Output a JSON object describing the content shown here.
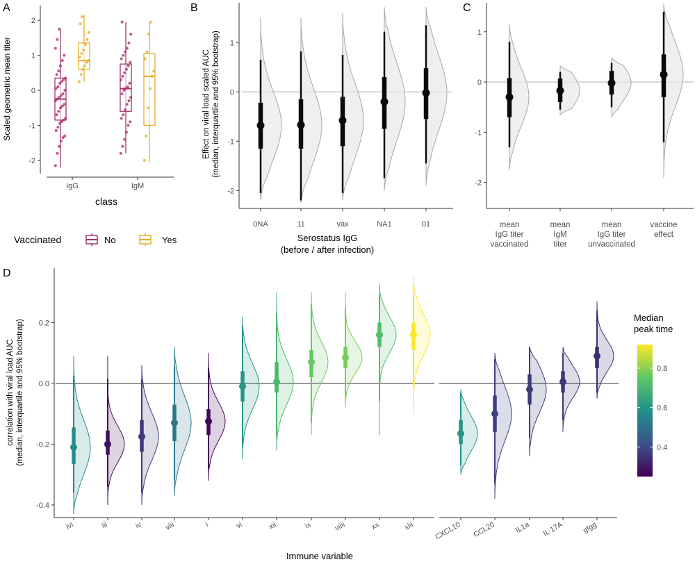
{
  "panel_letters": [
    "A",
    "B",
    "C",
    "D"
  ],
  "colors": {
    "no": "#a8326e",
    "yes": "#e7ae2a",
    "median_line": "#0a0a0a",
    "zero_line": "#b9b9b9",
    "zero_line_d": "#595959",
    "density_fill": "#e8e8e8",
    "density_stroke": "#a8a8a8",
    "axis_text": "#4d4d4d",
    "viridis": [
      "#440154",
      "#3b528b",
      "#21908c",
      "#5dc863",
      "#fde725"
    ]
  },
  "chart_data": [
    {
      "id": "A",
      "type": "box",
      "xlabel": "class",
      "ylabel": "Scaled geometric mean titer",
      "ylim": [
        -2.3,
        2.3
      ],
      "yticks": [
        -2,
        -1,
        0,
        1,
        2
      ],
      "categories": [
        "IgG",
        "IgM"
      ],
      "legend": {
        "title": "Vaccinated",
        "entries": [
          "No",
          "Yes"
        ]
      },
      "boxes": [
        {
          "category": "IgG",
          "group": "No",
          "min": -2.2,
          "q1": -0.85,
          "median": -0.25,
          "q3": 0.35,
          "max": 1.75
        },
        {
          "category": "IgG",
          "group": "Yes",
          "min": 0.25,
          "q1": 0.6,
          "median": 0.85,
          "q3": 1.35,
          "max": 2.15
        },
        {
          "category": "IgM",
          "group": "No",
          "min": -1.8,
          "q1": -0.6,
          "median": 0.05,
          "q3": 0.75,
          "max": 1.95
        },
        {
          "category": "IgM",
          "group": "Yes",
          "min": -2.05,
          "q1": -1.0,
          "median": 0.4,
          "q3": 1.05,
          "max": 1.95
        }
      ],
      "points": {
        "IgG_No": [
          -2.15,
          -1.8,
          -1.6,
          -1.45,
          -1.35,
          -1.3,
          -1.15,
          -1.05,
          -0.95,
          -0.9,
          -0.85,
          -0.8,
          -0.7,
          -0.6,
          -0.5,
          -0.45,
          -0.4,
          -0.3,
          -0.25,
          -0.2,
          -0.15,
          -0.1,
          0.0,
          0.05,
          0.1,
          0.2,
          0.25,
          0.3,
          0.35,
          0.45,
          0.55,
          0.7,
          0.85,
          1.0,
          1.2,
          1.45,
          1.75
        ],
        "IgG_Yes": [
          0.25,
          0.45,
          0.6,
          0.7,
          0.8,
          0.85,
          0.95,
          1.05,
          1.15,
          1.3,
          1.45,
          1.65,
          1.9,
          2.1
        ],
        "IgM_No": [
          -1.8,
          -1.6,
          -1.4,
          -1.2,
          -1.0,
          -0.9,
          -0.8,
          -0.7,
          -0.55,
          -0.4,
          -0.3,
          -0.2,
          -0.1,
          0.0,
          0.05,
          0.1,
          0.2,
          0.3,
          0.4,
          0.5,
          0.6,
          0.7,
          0.8,
          0.9,
          1.0,
          1.1,
          1.2,
          1.35,
          1.6,
          1.95
        ],
        "IgM_Yes": [
          -2.0,
          -1.3,
          -0.5,
          0.05,
          0.4,
          0.55,
          0.9,
          1.1,
          1.6,
          1.95
        ]
      }
    },
    {
      "id": "B",
      "type": "interval",
      "xlabel": "Serostatus IgG\n(before / after infection)",
      "ylabel": "Effect on viral load scaled AUC\n(median, interquartile and 95% bootstrap)",
      "ylim": [
        -2.25,
        1.75
      ],
      "yticks": [
        -2,
        -1,
        0,
        1
      ],
      "categories": [
        "0NA",
        "11",
        "vax",
        "NA1",
        "01"
      ],
      "series": [
        {
          "category": "0NA",
          "median": -0.68,
          "q1": -1.15,
          "q3": -0.22,
          "lo": -2.05,
          "hi": 0.65,
          "density_lo": -2.2,
          "density_hi": 1.5
        },
        {
          "category": "11",
          "median": -0.67,
          "q1": -1.15,
          "q3": -0.15,
          "lo": -2.2,
          "hi": 0.82,
          "density_lo": -2.25,
          "density_hi": 1.5
        },
        {
          "category": "vax",
          "median": -0.58,
          "q1": -1.1,
          "q3": -0.1,
          "lo": -2.05,
          "hi": 0.75,
          "density_lo": -2.2,
          "density_hi": 1.6
        },
        {
          "category": "NA1",
          "median": -0.2,
          "q1": -0.75,
          "q3": 0.3,
          "lo": -1.75,
          "hi": 1.22,
          "density_lo": -2.0,
          "density_hi": 1.72
        },
        {
          "category": "01",
          "median": -0.02,
          "q1": -0.55,
          "q3": 0.48,
          "lo": -1.45,
          "hi": 1.35,
          "density_lo": -1.9,
          "density_hi": 1.72
        }
      ]
    },
    {
      "id": "C",
      "type": "interval",
      "xlabel": "",
      "ylabel": "",
      "ylim": [
        -2.35,
        1.55
      ],
      "yticks": [
        -2,
        -1,
        0,
        1
      ],
      "categories": [
        "mean\nIgG titer\nvaccinated",
        "mean\nIgM\ntiter",
        "mean\nIgG titer\nunvaccinated",
        "vaccine\neffect"
      ],
      "series": [
        {
          "category": "mean IgG titer vaccinated",
          "median": -0.3,
          "q1": -0.7,
          "q3": 0.08,
          "lo": -1.3,
          "hi": 0.8,
          "density_lo": -1.75,
          "density_hi": 1.15
        },
        {
          "category": "mean IgM titer",
          "median": -0.17,
          "q1": -0.4,
          "q3": 0.07,
          "lo": -0.55,
          "hi": 0.2,
          "density_lo": -0.65,
          "density_hi": 0.32
        },
        {
          "category": "mean IgG titer unvaccinated",
          "median": -0.02,
          "q1": -0.25,
          "q3": 0.22,
          "lo": -0.5,
          "hi": 0.38,
          "density_lo": -0.7,
          "density_hi": 0.48
        },
        {
          "category": "vaccine effect",
          "median": 0.15,
          "q1": -0.3,
          "q3": 0.55,
          "lo": -1.2,
          "hi": 1.4,
          "density_lo": -1.9,
          "density_hi": 1.55
        }
      ]
    },
    {
      "id": "D",
      "type": "interval",
      "xlabel": "Immune variable",
      "ylabel": "correlation with viral load AUC\n(median, interquartile and 95% bootstrap)",
      "ylim": [
        -0.43,
        0.37
      ],
      "yticks": [
        -0.4,
        -0.2,
        0.0,
        0.2
      ],
      "ytick_labels": [
        "-0.4",
        "-0.2",
        "0.0",
        "0.2"
      ],
      "colorbar": {
        "title": "Median\npeak time",
        "range": [
          0.25,
          0.92
        ],
        "ticks": [
          0.4,
          0.6,
          0.8
        ]
      },
      "groups": [
        {
          "categories": [
            "ivi",
            "iii",
            "iv",
            "viii",
            "i",
            "vi",
            "xii",
            "ix",
            "viiii",
            "xx",
            "xiii"
          ],
          "series": [
            {
              "category": "ivi",
              "median": -0.21,
              "q1": -0.265,
              "q3": -0.145,
              "lo": -0.36,
              "hi": 0.025,
              "peak": 0.58,
              "density_lo": -0.43,
              "density_hi": 0.09
            },
            {
              "category": "iii",
              "median": -0.2,
              "q1": -0.235,
              "q3": -0.155,
              "lo": -0.34,
              "hi": 0.015,
              "peak": 0.28,
              "density_lo": -0.4,
              "density_hi": 0.09
            },
            {
              "category": "iv",
              "median": -0.175,
              "q1": -0.225,
              "q3": -0.12,
              "lo": -0.36,
              "hi": 0.015,
              "peak": 0.37,
              "density_lo": -0.4,
              "density_hi": 0.06
            },
            {
              "category": "viii",
              "median": -0.13,
              "q1": -0.19,
              "q3": -0.07,
              "lo": -0.32,
              "hi": 0.06,
              "peak": 0.52,
              "density_lo": -0.37,
              "density_hi": 0.12
            },
            {
              "category": "i",
              "median": -0.125,
              "q1": -0.17,
              "q3": -0.085,
              "lo": -0.28,
              "hi": 0.05,
              "peak": 0.26,
              "density_lo": -0.32,
              "density_hi": 0.1
            },
            {
              "category": "vi",
              "median": -0.01,
              "q1": -0.06,
              "q3": 0.04,
              "lo": -0.21,
              "hi": 0.19,
              "peak": 0.6,
              "density_lo": -0.25,
              "density_hi": 0.22
            },
            {
              "category": "xii",
              "median": 0.005,
              "q1": -0.03,
              "q3": 0.07,
              "lo": -0.17,
              "hi": 0.23,
              "peak": 0.7,
              "density_lo": -0.22,
              "density_hi": 0.3
            },
            {
              "category": "ix",
              "median": 0.07,
              "q1": 0.02,
              "q3": 0.11,
              "lo": -0.13,
              "hi": 0.26,
              "peak": 0.76,
              "density_lo": -0.17,
              "density_hi": 0.3
            },
            {
              "category": "viiii",
              "median": 0.085,
              "q1": 0.05,
              "q3": 0.12,
              "lo": -0.04,
              "hi": 0.25,
              "peak": 0.78,
              "density_lo": -0.08,
              "density_hi": 0.3
            },
            {
              "category": "xx",
              "median": 0.16,
              "q1": 0.12,
              "q3": 0.2,
              "lo": -0.06,
              "hi": 0.29,
              "peak": 0.72,
              "density_lo": -0.17,
              "density_hi": 0.33
            },
            {
              "category": "xiii",
              "median": 0.16,
              "q1": 0.11,
              "q3": 0.2,
              "lo": 0.0,
              "hi": 0.3,
              "peak": 0.92,
              "density_lo": -0.1,
              "density_hi": 0.35
            }
          ]
        },
        {
          "categories": [
            "CXCL10",
            "CCL20",
            "IL1a",
            "IL 17A",
            "gfgg"
          ],
          "series": [
            {
              "category": "CXCL10",
              "median": -0.165,
              "q1": -0.2,
              "q3": -0.12,
              "lo": -0.27,
              "hi": -0.03,
              "peak": 0.6,
              "density_lo": -0.3,
              "density_hi": -0.02
            },
            {
              "category": "CCL20",
              "median": -0.1,
              "q1": -0.16,
              "q3": -0.04,
              "lo": -0.33,
              "hi": 0.08,
              "peak": 0.38,
              "density_lo": -0.38,
              "density_hi": 0.1
            },
            {
              "category": "IL1a",
              "median": -0.02,
              "q1": -0.07,
              "q3": 0.03,
              "lo": -0.18,
              "hi": 0.12,
              "peak": 0.37,
              "density_lo": -0.24,
              "density_hi": 0.12
            },
            {
              "category": "IL 17A",
              "median": 0.005,
              "q1": -0.03,
              "q3": 0.04,
              "lo": -0.12,
              "hi": 0.1,
              "peak": 0.36,
              "density_lo": -0.16,
              "density_hi": 0.12
            },
            {
              "category": "gfgg",
              "median": 0.09,
              "q1": 0.05,
              "q3": 0.12,
              "lo": -0.03,
              "hi": 0.24,
              "peak": 0.34,
              "density_lo": -0.05,
              "density_hi": 0.27
            }
          ]
        }
      ]
    }
  ]
}
